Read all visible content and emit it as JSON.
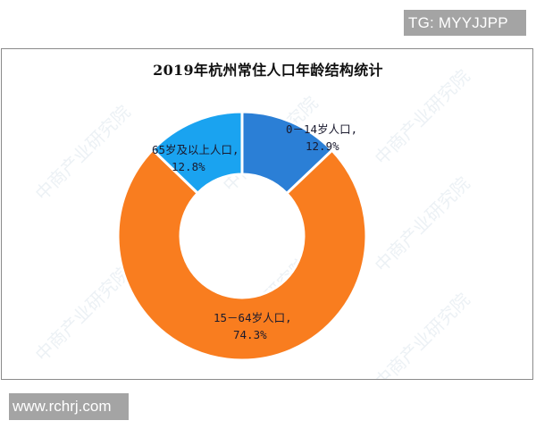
{
  "overlay": {
    "tg_badge": "TG: MYYJJPP",
    "url_badge": "www.rchrj.com"
  },
  "watermark": {
    "text": "中商产业研究院"
  },
  "chart_data": {
    "type": "pie",
    "variant": "donut",
    "title": "2019年杭州常住人口年龄结构统计",
    "categories": [
      "0－14岁人口",
      "15－64岁人口",
      "65岁及以上人口"
    ],
    "values": [
      12.9,
      74.3,
      12.8
    ],
    "unit": "%",
    "colors": [
      "#2B7FD6",
      "#F97D1F",
      "#1AA3F0"
    ],
    "labels": [
      {
        "line1": "0－14岁人口,",
        "line2": "12.9%"
      },
      {
        "line1": "15－64岁人口,",
        "line2": "74.3%"
      },
      {
        "line1": "65岁及以上人口,",
        "line2": "12.8%"
      }
    ],
    "start_angle_deg": 0,
    "direction": "clockwise",
    "legend": "none",
    "xlabel": "",
    "ylabel": ""
  }
}
